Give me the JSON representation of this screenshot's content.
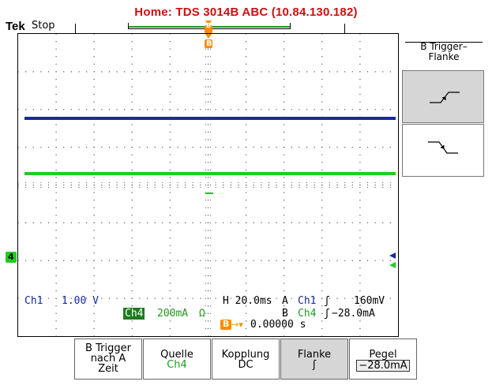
{
  "header": {
    "title": "Home:  TDS 3014B  ABC  (10.84.130.182)",
    "brand": "Tek",
    "status": "Stop"
  },
  "colors": {
    "ch1": "#1a2aa0",
    "ch4": "#22cc22",
    "ch4_badge_bg": "#1e7a1e",
    "trigger_marker": "#ff8c00",
    "title": "#cc1010"
  },
  "markers": {
    "trigger_top": "B",
    "ch4_ground": "4"
  },
  "readouts": {
    "ch1_label": "Ch1",
    "ch1_scale": "1.00 V",
    "ch4_label": "Ch4",
    "ch4_scale": "200mA",
    "ch4_unit_symbol": "Ω",
    "timebase": "H 20.0ms",
    "trig_a_prefix": "A",
    "trig_a_src": "Ch1",
    "trig_a_slope": "ʃ",
    "trig_a_level": "160mV",
    "trig_b_prefix": "B",
    "trig_b_src": "Ch4",
    "trig_b_slope": "ʃ",
    "trig_b_level": "−28.0mA",
    "delay_marker": "B",
    "delay_value": "0.00000 s"
  },
  "side_menu": {
    "title_line1": "B Trigger–",
    "title_line2": "Flanke",
    "options": [
      {
        "icon": "rising-edge-icon",
        "selected": true
      },
      {
        "icon": "falling-edge-icon",
        "selected": false
      }
    ]
  },
  "softkeys": [
    {
      "line1": "B Trigger",
      "line2": "nach A",
      "line3": "Zeit"
    },
    {
      "line1": "Quelle",
      "line2": "Ch4"
    },
    {
      "line1": "Kopplung",
      "line2": "DC"
    },
    {
      "line1": "Flanke",
      "line2": "ʃ"
    },
    {
      "line1": "Pegel",
      "line2": "−28.0mA"
    }
  ]
}
